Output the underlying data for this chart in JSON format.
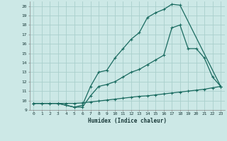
{
  "xlabel": "Humidex (Indice chaleur)",
  "background_color": "#cce8e6",
  "grid_color": "#aacfcc",
  "line_color": "#1a6b60",
  "xlim": [
    -0.5,
    23.5
  ],
  "ylim": [
    9,
    20.5
  ],
  "xticks": [
    0,
    1,
    2,
    3,
    4,
    5,
    6,
    7,
    8,
    9,
    10,
    11,
    12,
    13,
    14,
    15,
    16,
    17,
    18,
    19,
    20,
    21,
    22,
    23
  ],
  "yticks": [
    9,
    10,
    11,
    12,
    13,
    14,
    15,
    16,
    17,
    18,
    19,
    20
  ],
  "curve1_x": [
    0,
    1,
    2,
    3,
    4,
    5,
    6,
    7,
    8,
    9,
    10,
    11,
    12,
    13,
    14,
    15,
    16,
    17,
    18,
    23
  ],
  "curve1_y": [
    9.7,
    9.7,
    9.7,
    9.7,
    9.5,
    9.3,
    9.5,
    11.5,
    13.0,
    13.2,
    14.5,
    15.5,
    16.5,
    17.2,
    18.8,
    19.3,
    19.65,
    20.2,
    20.1,
    11.5
  ],
  "curve2_x": [
    0,
    3,
    5,
    6,
    7,
    8,
    9,
    10,
    11,
    12,
    13,
    14,
    15,
    16,
    17,
    18,
    19,
    20,
    21,
    22,
    23
  ],
  "curve2_y": [
    9.7,
    9.7,
    9.3,
    9.3,
    10.5,
    11.5,
    11.7,
    12.0,
    12.5,
    13.0,
    13.3,
    13.8,
    14.3,
    14.8,
    17.7,
    18.0,
    15.5,
    15.5,
    14.5,
    12.5,
    11.5
  ],
  "curve3_x": [
    0,
    1,
    2,
    3,
    4,
    5,
    6,
    7,
    8,
    9,
    10,
    11,
    12,
    13,
    14,
    15,
    16,
    17,
    18,
    19,
    20,
    21,
    22,
    23
  ],
  "curve3_y": [
    9.7,
    9.7,
    9.7,
    9.7,
    9.7,
    9.7,
    9.75,
    9.85,
    9.95,
    10.05,
    10.15,
    10.25,
    10.35,
    10.45,
    10.5,
    10.6,
    10.7,
    10.8,
    10.9,
    11.0,
    11.1,
    11.2,
    11.35,
    11.5
  ]
}
